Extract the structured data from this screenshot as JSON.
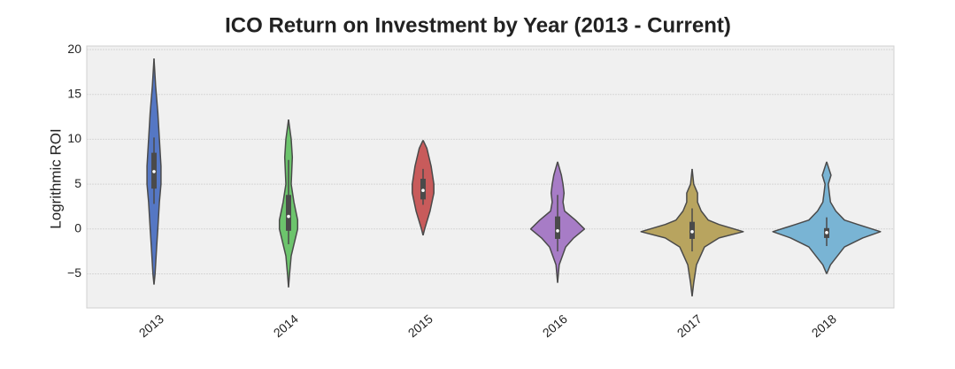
{
  "chart_data": {
    "type": "violin",
    "title": "ICO Return on Investment by Year (2013 - Current)",
    "y_label": "Logrithmic ROI",
    "categories": [
      "2013",
      "2014",
      "2015",
      "2016",
      "2017",
      "2018"
    ],
    "ylim": [
      -8.8,
      20.4
    ],
    "yticks": [
      {
        "value": -5,
        "label": "−5"
      },
      0,
      5,
      10,
      15,
      20
    ],
    "grid": true,
    "violins": [
      {
        "color": "#5577c4",
        "y": [
          -6.2,
          -5,
          -2,
          0,
          3,
          5,
          7,
          10,
          13,
          16,
          19
        ],
        "density": [
          0,
          0.02,
          0.05,
          0.07,
          0.1,
          0.13,
          0.13,
          0.1,
          0.07,
          0.03,
          0
        ],
        "whisker_low": 2.8,
        "q1": 4.5,
        "median": 6.4,
        "q3": 8.5,
        "whisker_high": 10.2
      },
      {
        "color": "#6cc46c",
        "y": [
          -6.5,
          -5,
          -3,
          0,
          1,
          3,
          5,
          8,
          10,
          12.2
        ],
        "density": [
          0,
          0.02,
          0.05,
          0.17,
          0.17,
          0.1,
          0.05,
          0.07,
          0.05,
          0
        ],
        "whisker_low": -1.7,
        "q1": -0.2,
        "median": 1.4,
        "q3": 3.8,
        "whisker_high": 7.7
      },
      {
        "color": "#c85b5b",
        "y": [
          -0.7,
          0,
          2,
          4,
          5,
          7,
          9,
          9.9
        ],
        "density": [
          0,
          0.03,
          0.13,
          0.2,
          0.2,
          0.15,
          0.07,
          0
        ],
        "whisker_low": 2.7,
        "q1": 3.3,
        "median": 4.3,
        "q3": 5.6,
        "whisker_high": 6.7
      },
      {
        "color": "#a77cc6",
        "y": [
          -6,
          -4,
          -2,
          -1,
          0,
          1,
          2,
          3,
          4,
          5,
          6,
          7.5
        ],
        "density": [
          0,
          0.03,
          0.15,
          0.3,
          0.5,
          0.33,
          0.13,
          0.1,
          0.12,
          0.1,
          0.07,
          0
        ],
        "whisker_low": -2.5,
        "q1": -1.1,
        "median": -0.2,
        "q3": 1.4,
        "whisker_high": 3.8
      },
      {
        "color": "#b8a45f",
        "y": [
          -7.5,
          -6,
          -4,
          -2,
          -1,
          -0.3,
          0.5,
          1,
          2,
          3,
          4,
          5,
          6.7
        ],
        "density": [
          0,
          0.03,
          0.08,
          0.23,
          0.5,
          0.95,
          0.5,
          0.3,
          0.17,
          0.1,
          0.1,
          0.03,
          0
        ],
        "whisker_low": -2.5,
        "q1": -1.1,
        "median": -0.3,
        "q3": 0.8,
        "whisker_high": 2.3
      },
      {
        "color": "#79b4d4",
        "y": [
          -5,
          -4,
          -2,
          -1,
          -0.3,
          0.5,
          1,
          2,
          3,
          4,
          5,
          6,
          7.5
        ],
        "density": [
          0,
          0.07,
          0.33,
          0.67,
          1,
          0.58,
          0.33,
          0.17,
          0.07,
          0.05,
          0.03,
          0.08,
          0
        ],
        "whisker_low": -1.9,
        "q1": -1.0,
        "median": -0.4,
        "q3": 0.1,
        "whisker_high": 1.3
      }
    ]
  }
}
